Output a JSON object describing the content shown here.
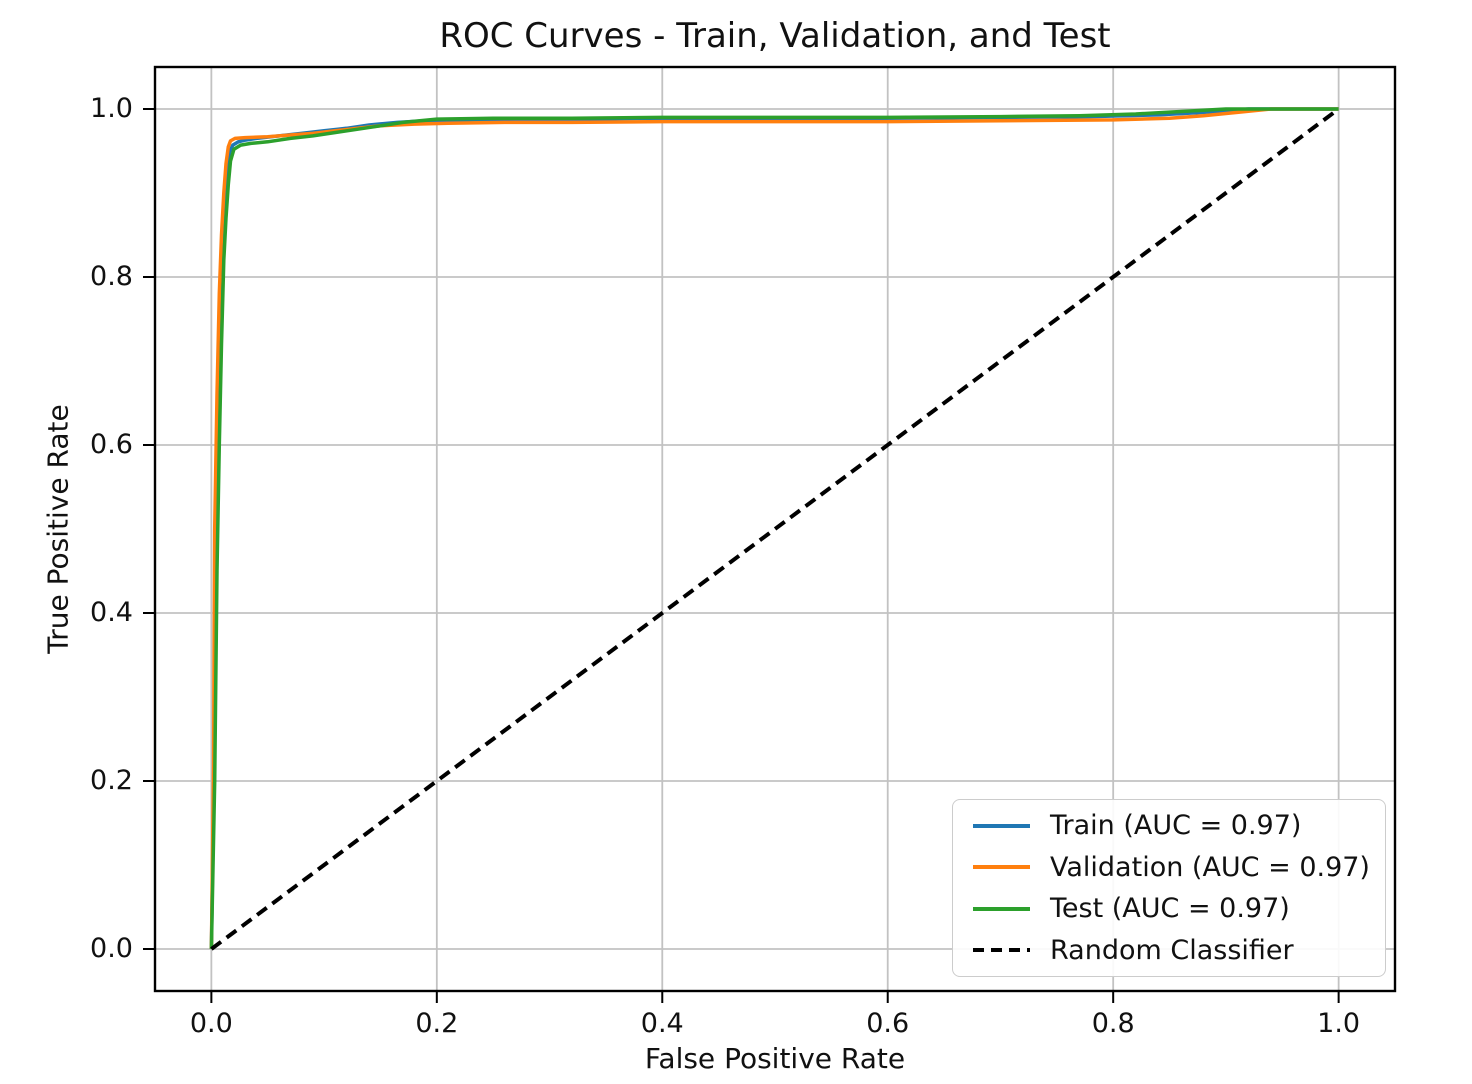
{
  "chart_data": {
    "type": "line",
    "title": "ROC Curves - Train, Validation, and Test",
    "xlabel": "False Positive Rate",
    "ylabel": "True Positive Rate",
    "xlim": [
      -0.05,
      1.05
    ],
    "ylim": [
      -0.05,
      1.05
    ],
    "grid": true,
    "grid_color": "#c2c2c2",
    "spine_color": "#000000",
    "background_color": "#ffffff",
    "legend_position": "lower right",
    "xticks": {
      "values": [
        0.0,
        0.2,
        0.4,
        0.6,
        0.8,
        1.0
      ],
      "labels": [
        "0.0",
        "0.2",
        "0.4",
        "0.6",
        "0.8",
        "1.0"
      ]
    },
    "yticks": {
      "values": [
        0.0,
        0.2,
        0.4,
        0.6,
        0.8,
        1.0
      ],
      "labels": [
        "0.0",
        "0.2",
        "0.4",
        "0.6",
        "0.8",
        "1.0"
      ]
    },
    "series": [
      {
        "name": "train",
        "label": "Train (AUC = 0.97)",
        "auc": 0.97,
        "color": "#1f77b4",
        "style": "solid",
        "points": [
          [
            0,
            0
          ],
          [
            0.002,
            0.18
          ],
          [
            0.004,
            0.46
          ],
          [
            0.006,
            0.62
          ],
          [
            0.008,
            0.74
          ],
          [
            0.01,
            0.83
          ],
          [
            0.012,
            0.885
          ],
          [
            0.014,
            0.925
          ],
          [
            0.016,
            0.948
          ],
          [
            0.019,
            0.957
          ],
          [
            0.024,
            0.961
          ],
          [
            0.03,
            0.963
          ],
          [
            0.04,
            0.965
          ],
          [
            0.06,
            0.968
          ],
          [
            0.08,
            0.971
          ],
          [
            0.1,
            0.974
          ],
          [
            0.12,
            0.977
          ],
          [
            0.14,
            0.981
          ],
          [
            0.165,
            0.984
          ],
          [
            0.19,
            0.986
          ],
          [
            0.22,
            0.987
          ],
          [
            0.27,
            0.988
          ],
          [
            0.33,
            0.988
          ],
          [
            0.4,
            0.989
          ],
          [
            0.5,
            0.989
          ],
          [
            0.6,
            0.989
          ],
          [
            0.7,
            0.99
          ],
          [
            0.78,
            0.991
          ],
          [
            0.84,
            0.993
          ],
          [
            0.88,
            0.996
          ],
          [
            0.92,
            1.0
          ],
          [
            1,
            1
          ]
        ]
      },
      {
        "name": "validation",
        "label": "Validation (AUC = 0.97)",
        "auc": 0.97,
        "color": "#ff7f0e",
        "style": "solid",
        "points": [
          [
            0,
            0
          ],
          [
            0.002,
            0.22
          ],
          [
            0.003,
            0.5
          ],
          [
            0.005,
            0.66
          ],
          [
            0.007,
            0.78
          ],
          [
            0.009,
            0.85
          ],
          [
            0.011,
            0.9
          ],
          [
            0.013,
            0.935
          ],
          [
            0.015,
            0.955
          ],
          [
            0.017,
            0.962
          ],
          [
            0.021,
            0.965
          ],
          [
            0.03,
            0.966
          ],
          [
            0.05,
            0.967
          ],
          [
            0.07,
            0.969
          ],
          [
            0.09,
            0.971
          ],
          [
            0.11,
            0.974
          ],
          [
            0.13,
            0.977
          ],
          [
            0.15,
            0.98
          ],
          [
            0.18,
            0.982
          ],
          [
            0.21,
            0.983
          ],
          [
            0.26,
            0.984
          ],
          [
            0.32,
            0.984
          ],
          [
            0.4,
            0.985
          ],
          [
            0.5,
            0.985
          ],
          [
            0.6,
            0.985
          ],
          [
            0.7,
            0.986
          ],
          [
            0.8,
            0.987
          ],
          [
            0.85,
            0.989
          ],
          [
            0.88,
            0.992
          ],
          [
            0.91,
            0.996
          ],
          [
            0.94,
            1.0
          ],
          [
            1,
            1
          ]
        ]
      },
      {
        "name": "test",
        "label": "Test (AUC = 0.97)",
        "auc": 0.97,
        "color": "#2ca02c",
        "style": "solid",
        "points": [
          [
            0,
            0
          ],
          [
            0.003,
            0.2
          ],
          [
            0.005,
            0.45
          ],
          [
            0.007,
            0.6
          ],
          [
            0.009,
            0.72
          ],
          [
            0.011,
            0.82
          ],
          [
            0.013,
            0.87
          ],
          [
            0.015,
            0.91
          ],
          [
            0.017,
            0.938
          ],
          [
            0.02,
            0.952
          ],
          [
            0.026,
            0.957
          ],
          [
            0.035,
            0.959
          ],
          [
            0.05,
            0.961
          ],
          [
            0.07,
            0.965
          ],
          [
            0.09,
            0.968
          ],
          [
            0.11,
            0.972
          ],
          [
            0.13,
            0.976
          ],
          [
            0.15,
            0.98
          ],
          [
            0.17,
            0.984
          ],
          [
            0.2,
            0.988
          ],
          [
            0.25,
            0.989
          ],
          [
            0.32,
            0.989
          ],
          [
            0.4,
            0.99
          ],
          [
            0.5,
            0.99
          ],
          [
            0.6,
            0.99
          ],
          [
            0.7,
            0.991
          ],
          [
            0.77,
            0.992
          ],
          [
            0.82,
            0.994
          ],
          [
            0.86,
            0.997
          ],
          [
            0.9,
            1.0
          ],
          [
            1,
            1
          ]
        ]
      },
      {
        "name": "random-classifier",
        "label": "Random Classifier",
        "color": "#000000",
        "style": "dashed",
        "points": [
          [
            0,
            0
          ],
          [
            1,
            1
          ]
        ]
      }
    ]
  }
}
